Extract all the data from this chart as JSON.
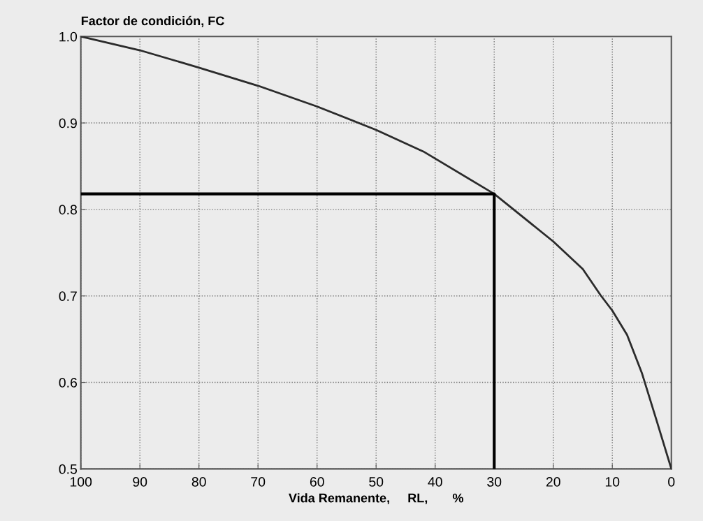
{
  "chart_data": {
    "type": "line",
    "ylabel": "Factor de condición, FC",
    "xlabel": "Vida Remanente,     RL,       %",
    "xlim": [
      100,
      0
    ],
    "ylim": [
      0.5,
      1.0
    ],
    "xticks": [
      100,
      90,
      80,
      70,
      60,
      50,
      40,
      30,
      20,
      10,
      0
    ],
    "yticks": [
      {
        "value": 0.5,
        "label": "0.5"
      },
      {
        "value": 0.6,
        "label": "0.6"
      },
      {
        "value": 0.7,
        "label": "0.7"
      },
      {
        "value": 0.8,
        "label": "0.8"
      },
      {
        "value": 0.9,
        "label": "0.9"
      },
      {
        "value": 1.0,
        "label": "1.0"
      }
    ],
    "grid": true,
    "marker": "none",
    "line_style": "solid",
    "series": [
      {
        "color": "#2b2b2b",
        "x": [
          100,
          90,
          80,
          70,
          60,
          50,
          42,
          30,
          20,
          15,
          12,
          10,
          7.5,
          5,
          2.5,
          0
        ],
        "values": [
          1.0,
          0.984,
          0.964,
          0.943,
          0.919,
          0.892,
          0.867,
          0.818,
          0.763,
          0.731,
          0.701,
          0.683,
          0.655,
          0.611,
          0.556,
          0.5
        ]
      },
      {
        "color": "#000000",
        "x": [
          100,
          30,
          30
        ],
        "values": [
          0.818,
          0.818,
          0.5
        ]
      }
    ]
  }
}
